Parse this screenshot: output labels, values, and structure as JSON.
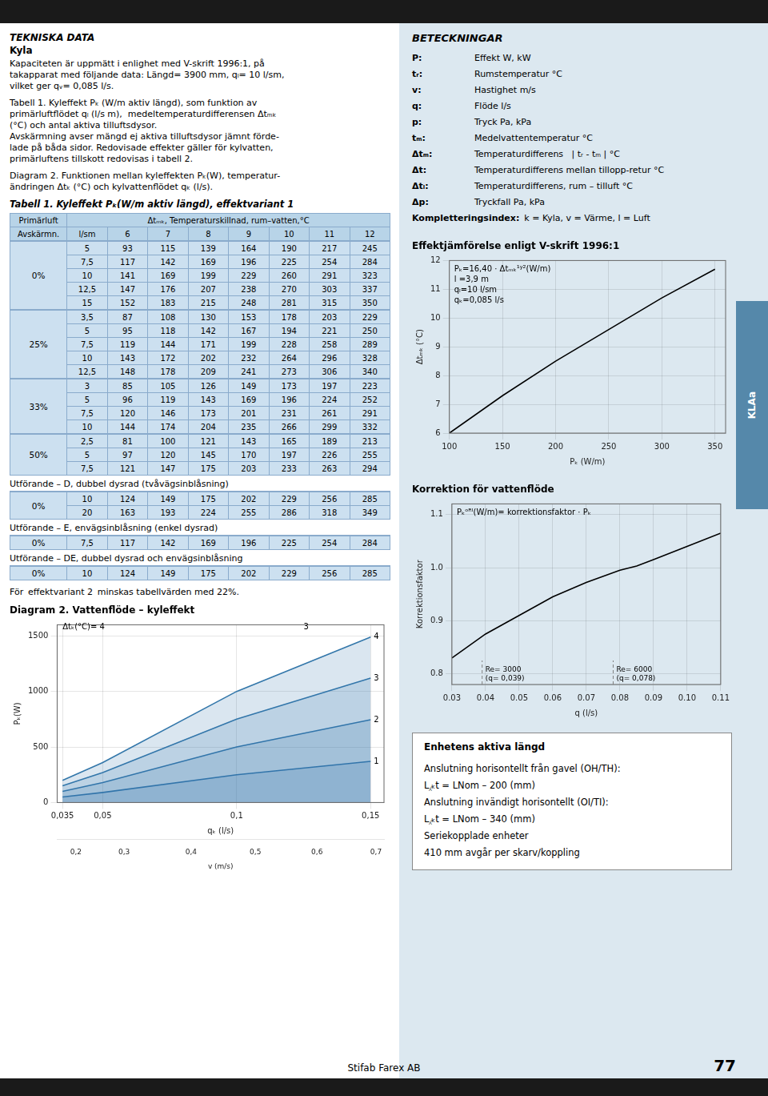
{
  "chart_data": [
    {
      "type": "area",
      "title": "Diagram 2. Vattenflöde – kyleffekt",
      "x": [
        0.035,
        0.05,
        0.1,
        0.15
      ],
      "series": [
        {
          "name": "4",
          "color": "#3377aa",
          "values": [
            200,
            360,
            1000,
            1490
          ]
        },
        {
          "name": "3",
          "color": "#3377aa",
          "values": [
            150,
            270,
            750,
            1120
          ]
        },
        {
          "name": "2",
          "color": "#3377aa",
          "values": [
            100,
            180,
            500,
            745
          ]
        },
        {
          "name": "1",
          "color": "#3377aa",
          "values": [
            50,
            90,
            250,
            370
          ]
        }
      ],
      "xlim": [
        0.033,
        0.155
      ],
      "xticks": [
        {
          "value": 0.035,
          "label": "0,035"
        },
        {
          "value": 0.05,
          "label": "0,05"
        },
        {
          "value": 0.1,
          "label": "0,1"
        },
        {
          "value": 0.15,
          "label": "0,15"
        }
      ],
      "xlabel": "qₖ (l/s)",
      "x2ticks": [
        {
          "value": 0.04,
          "label": "0,2"
        },
        {
          "value": 0.058,
          "label": "0,3"
        },
        {
          "value": 0.083,
          "label": "0,4"
        },
        {
          "value": 0.107,
          "label": "0,5"
        },
        {
          "value": 0.13,
          "label": "0,6"
        },
        {
          "value": 0.152,
          "label": "0,7"
        }
      ],
      "x2label": "v (m/s)",
      "ylim": [
        0,
        1600
      ],
      "yticks": [
        0,
        500,
        1000,
        1500
      ],
      "ylabel": "Pₖ(W)",
      "grid": true,
      "annotations": [
        {
          "text": "Δtₖ(°C)= 4",
          "x": 0.035,
          "y": 1560
        },
        {
          "text": "3",
          "x": 0.125,
          "y": 1560
        }
      ]
    },
    {
      "type": "line",
      "title": "Effektjämförelse enligt V-skrift 1996:1",
      "x": [
        100,
        150,
        200,
        250,
        300,
        350
      ],
      "values": [
        6.0,
        7.3,
        8.5,
        9.6,
        10.7,
        11.7
      ],
      "color": "#000000",
      "xlim": [
        100,
        360
      ],
      "xticks": [
        100,
        150,
        200,
        250,
        300,
        350
      ],
      "xlabel": "Pₖ (W/m)",
      "ylim": [
        6,
        12
      ],
      "yticks": [
        6,
        7,
        8,
        9,
        10,
        11,
        12
      ],
      "ylabel": "Δtₘₖ (°C)",
      "grid": true,
      "annotations": [
        "Pₖ=16,40 · Δtₘₖ¹ʸ²(W/m)",
        "l =3,9 m",
        "qₗ=10 l/sm",
        "qₖ=0,085 l/s"
      ]
    },
    {
      "type": "line",
      "title": "Korrektion för vattenflöde",
      "x": [
        0.03,
        0.04,
        0.05,
        0.06,
        0.07,
        0.08,
        0.085,
        0.09,
        0.1,
        0.11
      ],
      "values": [
        0.83,
        0.875,
        0.91,
        0.945,
        0.972,
        0.995,
        1.003,
        1.015,
        1.04,
        1.065
      ],
      "color": "#000000",
      "xlim": [
        0.03,
        0.11
      ],
      "xticks": [
        0.03,
        0.04,
        0.05,
        0.06,
        0.07,
        0.08,
        0.09,
        {
          "value": 0.1,
          "label": "0.10"
        },
        0.11
      ],
      "xlabel": "q (l/s)",
      "ylim": [
        0.78,
        1.12
      ],
      "yticks": [
        0.8,
        0.9,
        {
          "value": 1.0,
          "label": "1.0"
        },
        1.1
      ],
      "ylabel": "Korrektionsfaktor",
      "grid": true,
      "annotations": [
        "Pₖᵒᴿᴵ(W/m)= korrektionsfaktor · Pₖ"
      ],
      "vlines": [
        {
          "x": 0.039,
          "label": "Re= 3000\n(q= 0,039)"
        },
        {
          "x": 0.078,
          "label": "Re= 6000\n(q= 0,078)"
        }
      ]
    }
  ],
  "tables": [
    {
      "title": "Tabell 1. Kyleffekt Pₖ(W/m aktiv längd), effektvariant 1",
      "header_groups": [
        "Primärluft",
        "Δtₘₖ, Temperaturskillnad, rum–vatten,°C"
      ],
      "columns": [
        "Avskärmn.",
        "l/sm",
        "6",
        "7",
        "8",
        "9",
        "10",
        "11",
        "12"
      ],
      "sections": [
        {
          "avsk": "0%",
          "rows": [
            [
              "5",
              93,
              115,
              139,
              164,
              190,
              217,
              245
            ],
            [
              "7,5",
              117,
              142,
              169,
              196,
              225,
              254,
              284
            ],
            [
              "10",
              141,
              169,
              199,
              229,
              260,
              291,
              323
            ],
            [
              "12,5",
              147,
              176,
              207,
              238,
              270,
              303,
              337
            ],
            [
              "15",
              152,
              183,
              215,
              248,
              281,
              315,
              350
            ]
          ]
        },
        {
          "avsk": "25%",
          "rows": [
            [
              "3,5",
              87,
              108,
              130,
              153,
              178,
              203,
              229
            ],
            [
              "5",
              95,
              118,
              142,
              167,
              194,
              221,
              250
            ],
            [
              "7,5",
              119,
              144,
              171,
              199,
              228,
              258,
              289
            ],
            [
              "10",
              143,
              172,
              202,
              232,
              264,
              296,
              328
            ],
            [
              "12,5",
              148,
              178,
              209,
              241,
              273,
              306,
              340
            ]
          ]
        },
        {
          "avsk": "33%",
          "rows": [
            [
              "3",
              85,
              105,
              126,
              149,
              173,
              197,
              223
            ],
            [
              "5",
              96,
              119,
              143,
              169,
              196,
              224,
              252
            ],
            [
              "7,5",
              120,
              146,
              173,
              201,
              231,
              261,
              291
            ],
            [
              "10",
              144,
              174,
              204,
              235,
              266,
              299,
              332
            ]
          ]
        },
        {
          "avsk": "50%",
          "rows": [
            [
              "2,5",
              81,
              100,
              121,
              143,
              165,
              189,
              213
            ],
            [
              "5",
              97,
              120,
              145,
              170,
              197,
              226,
              255
            ],
            [
              "7,5",
              121,
              147,
              175,
              203,
              233,
              263,
              294
            ]
          ]
        }
      ]
    },
    {
      "title": "Utförande – D, dubbel dysrad (tvåvägsinblåsning)",
      "sections": [
        {
          "avsk": "0%",
          "rows": [
            [
              "10",
              124,
              149,
              175,
              202,
              229,
              256,
              285
            ],
            [
              "20",
              163,
              193,
              224,
              255,
              286,
              318,
              349
            ]
          ]
        }
      ]
    },
    {
      "title": "Utförande – E, envägsinblåsning (enkel dysrad)",
      "sections": [
        {
          "avsk": "0%",
          "rows": [
            [
              "7,5",
              117,
              142,
              169,
              196,
              225,
              254,
              284
            ]
          ]
        }
      ]
    },
    {
      "title": "Utförande – DE, dubbel dysrad och envägsinblåsning",
      "sections": [
        {
          "avsk": "0%",
          "rows": [
            [
              "10",
              124,
              149,
              175,
              202,
              229,
              256,
              285
            ]
          ]
        }
      ]
    }
  ],
  "page_texts": {
    "side_tab": "KLAa",
    "left_heading": "TEKNISKA DATA",
    "left_subheading": "Kyla",
    "left_paragraphs": [
      "Kapaciteten är uppmätt i enlighet med V-skrift 1996:1, på\ntakapparat med följande data: Längd= 3900 mm, qₗ= 10 l/sm,\nvilket ger qᵥ= 0,085 l/s.",
      "Tabell 1. Kyleffekt Pₖ (W/m aktiv längd), som funktion av\nprimärluftflödet qₗ (l/s m),  medeltemperaturdifferensen Δtₘₖ\n(°C) och antal aktiva tilluftsdysor.\nAvskärmning avser mängd ej aktiva tilluftsdysor jämnt förde-\nlade på båda sidor. Redovisade effekter gäller för kylvatten,\nprimärluftens tillskott redovisas i tabell 2.",
      "Diagram 2. Funktionen mellan kyleffekten Pₖ(W), temperatur-\nändringen Δtₖ (°C) och kylvattenflödet qₖ (l/s)."
    ],
    "note": "För  ​effektvariant 2  minskas tabellvärden med 22%.",
    "glossary_title": "BETECKNINGAR",
    "glossary": [
      [
        "P:",
        "Effekt W, kW"
      ],
      [
        "tᵣ:",
        "Rumstemperatur °C"
      ],
      [
        "v:",
        "Hastighet m/s"
      ],
      [
        "q:",
        "Flöde l/s"
      ],
      [
        "p:",
        "Tryck Pa, kPa"
      ],
      [
        "tₘ:",
        "Medelvattentemperatur °C"
      ],
      [
        "Δtₘ:",
        "Temperaturdifferens   | tᵣ - tₘ | °C"
      ],
      [
        "Δt:",
        "Temperaturdifferens mellan tillopp-retur °C"
      ],
      [
        "Δtₗ:",
        "Temperaturdifferens, rum – tilluft °C"
      ],
      [
        "Δp:",
        "Tryckfall Pa, kPa"
      ],
      [
        "Kompletteringsindex:",
        "k = Kyla, v = Värme, l = Luft"
      ]
    ],
    "box_title": "Enhetens aktiva längd",
    "box_lines": [
      "Anslutning horisontellt från gavel (OH/TH):",
      "L⁁ₖt = LNom – 200 (mm)",
      "Anslutning invändigt horisontellt (OI/TI):",
      "L⁁ₖt = LNom – 340 (mm)",
      "Seriekopplade enheter",
      "410 mm avgår per skarv/koppling"
    ],
    "footer": "Stifab Farex AB",
    "page_number": "77"
  }
}
